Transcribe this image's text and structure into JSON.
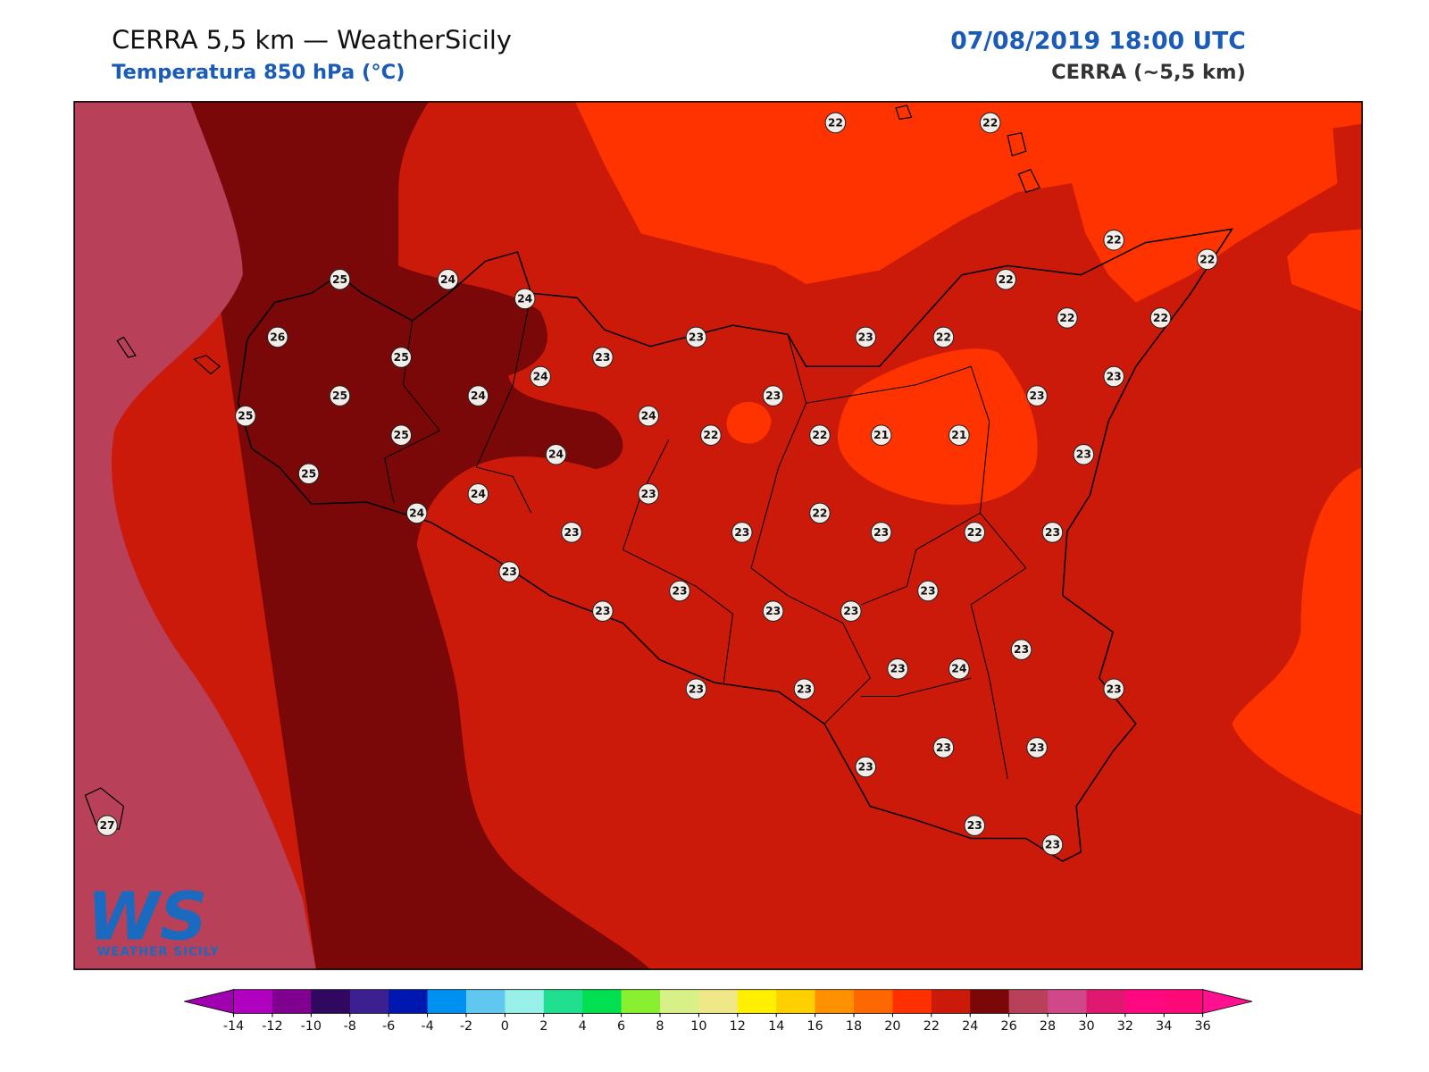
{
  "header": {
    "title": "CERRA 5,5 km — WeatherSicily",
    "subtitle": "Temperatura 850 hPa (°C)",
    "datetime": "07/08/2019 18:00 UTC",
    "model": "CERRA (~5,5 km)"
  },
  "logo": {
    "mark": "WS",
    "text": "Weather Sicily"
  },
  "map": {
    "stations": [
      22,
      22,
      22,
      22,
      25,
      24,
      24,
      22,
      22,
      22,
      26,
      23,
      23,
      22,
      25,
      23,
      24,
      23,
      25,
      24,
      23,
      23,
      25,
      24,
      22,
      22,
      21,
      21,
      25,
      24,
      23,
      25,
      24,
      23,
      24,
      22,
      23,
      23,
      23,
      22,
      23,
      23,
      23,
      23,
      23,
      23,
      23,
      23,
      23,
      24,
      23,
      23,
      23,
      23,
      23,
      23,
      23,
      23,
      27
    ]
  },
  "colorbar": {
    "ticks": [
      -14,
      -12,
      -10,
      -8,
      -6,
      -4,
      -2,
      0,
      2,
      4,
      6,
      8,
      10,
      12,
      14,
      16,
      18,
      20,
      22,
      24,
      26,
      28,
      30,
      32,
      34,
      36
    ],
    "colors": [
      "#b000c0",
      "#800090",
      "#300860",
      "#3c2090",
      "#0018b0",
      "#0090f0",
      "#60c8f0",
      "#98f0e8",
      "#20e090",
      "#00e050",
      "#88f030",
      "#d8f088",
      "#f0e888",
      "#fff000",
      "#ffd000",
      "#ff9000",
      "#ff6800",
      "#ff3000",
      "#cc1a0a",
      "#7a0808",
      "#b84058",
      "#d04888",
      "#e01870",
      "#ff0880",
      "#ff0878"
    ],
    "under_color": "#a000b0",
    "over_color": "#ff1090"
  }
}
